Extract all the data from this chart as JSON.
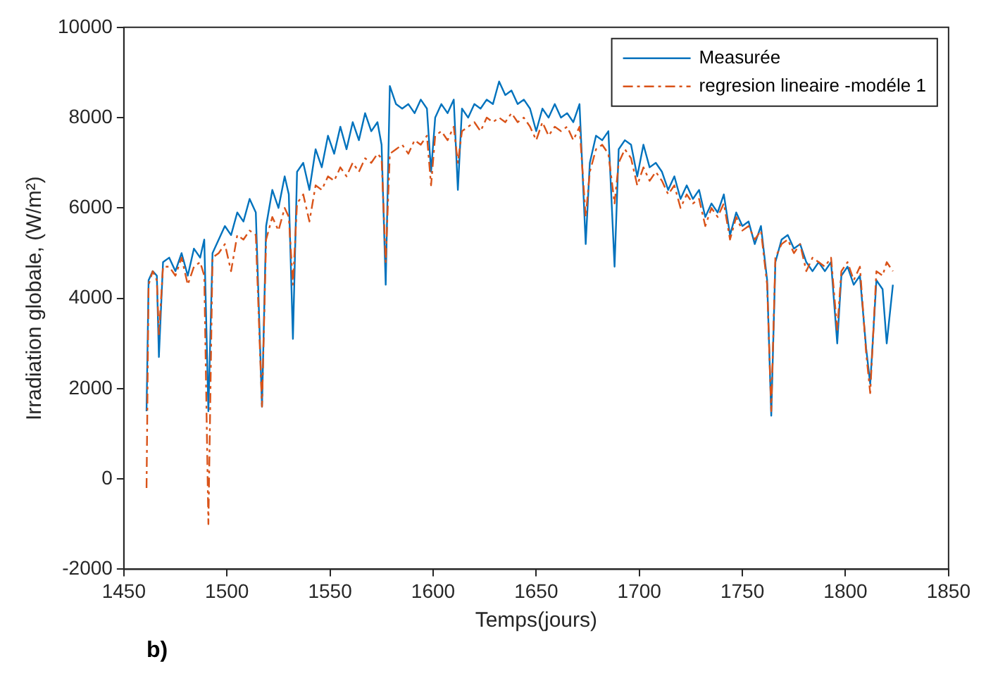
{
  "chart_data": {
    "type": "line",
    "xlabel": "Temps(jours)",
    "ylabel": "Irradiation globale, (W/m²)",
    "x": [
      1461,
      1462,
      1464,
      1466,
      1467,
      1469,
      1472,
      1475,
      1478,
      1481,
      1484,
      1487,
      1489,
      1491,
      1493,
      1496,
      1499,
      1502,
      1505,
      1508,
      1511,
      1514,
      1517,
      1519,
      1522,
      1525,
      1528,
      1530,
      1532,
      1534,
      1537,
      1540,
      1543,
      1546,
      1549,
      1552,
      1555,
      1558,
      1561,
      1564,
      1567,
      1570,
      1573,
      1575,
      1577,
      1579,
      1582,
      1585,
      1588,
      1591,
      1594,
      1597,
      1599,
      1601,
      1604,
      1607,
      1610,
      1612,
      1614,
      1617,
      1620,
      1623,
      1626,
      1629,
      1632,
      1635,
      1638,
      1641,
      1644,
      1647,
      1650,
      1653,
      1656,
      1659,
      1662,
      1665,
      1668,
      1671,
      1674,
      1676,
      1679,
      1682,
      1685,
      1688,
      1690,
      1693,
      1696,
      1699,
      1702,
      1705,
      1708,
      1711,
      1714,
      1717,
      1720,
      1723,
      1726,
      1729,
      1732,
      1735,
      1738,
      1741,
      1744,
      1747,
      1750,
      1753,
      1756,
      1759,
      1762,
      1764,
      1766,
      1769,
      1772,
      1775,
      1778,
      1781,
      1784,
      1787,
      1790,
      1793,
      1796,
      1798,
      1801,
      1804,
      1807,
      1810,
      1812,
      1815,
      1818,
      1820,
      1823
    ],
    "series": [
      {
        "name": "Measurée",
        "color": "#0072bd",
        "line_style": "solid",
        "values": [
          1500,
          4400,
          4600,
          4500,
          2700,
          4800,
          4900,
          4600,
          5000,
          4500,
          5100,
          4900,
          5300,
          1500,
          5000,
          5300,
          5600,
          5400,
          5900,
          5700,
          6200,
          5900,
          1600,
          5600,
          6400,
          6000,
          6700,
          6300,
          3100,
          6800,
          7000,
          6400,
          7300,
          6900,
          7600,
          7200,
          7800,
          7300,
          7900,
          7500,
          8100,
          7700,
          7900,
          7400,
          4300,
          8700,
          8300,
          8200,
          8300,
          8100,
          8400,
          8200,
          6800,
          8000,
          8300,
          8100,
          8400,
          6400,
          8200,
          8000,
          8300,
          8200,
          8400,
          8300,
          8800,
          8500,
          8600,
          8300,
          8400,
          8200,
          7700,
          8200,
          8000,
          8300,
          8000,
          8100,
          7900,
          8300,
          5200,
          7000,
          7600,
          7500,
          7700,
          4700,
          7300,
          7500,
          7400,
          6700,
          7400,
          6900,
          7000,
          6800,
          6400,
          6700,
          6200,
          6500,
          6200,
          6400,
          5800,
          6100,
          5900,
          6300,
          5400,
          5900,
          5600,
          5700,
          5200,
          5600,
          4400,
          1400,
          4800,
          5300,
          5400,
          5100,
          5200,
          4800,
          4600,
          4800,
          4600,
          4800,
          3000,
          4500,
          4700,
          4300,
          4500,
          2900,
          2100,
          4400,
          4200,
          3000,
          4300
        ]
      },
      {
        "name": "regresion lineaire -modéle 1",
        "color": "#d95319",
        "line_style": "dashed",
        "values": [
          -200,
          4300,
          4600,
          4400,
          3200,
          4700,
          4700,
          4500,
          4900,
          4300,
          4700,
          4800,
          4500,
          -1000,
          4900,
          5000,
          5200,
          4600,
          5400,
          5300,
          5500,
          5400,
          1600,
          5300,
          5800,
          5500,
          6000,
          5800,
          4300,
          6100,
          6300,
          5700,
          6500,
          6400,
          6700,
          6600,
          6900,
          6700,
          7000,
          6800,
          7100,
          7000,
          7200,
          7100,
          4800,
          7200,
          7300,
          7400,
          7200,
          7500,
          7400,
          7600,
          6500,
          7600,
          7700,
          7500,
          7800,
          7000,
          7700,
          7800,
          7900,
          7700,
          8000,
          7900,
          8000,
          7900,
          8100,
          7900,
          8000,
          7800,
          7500,
          7900,
          7600,
          7800,
          7700,
          7800,
          7500,
          7800,
          5800,
          6800,
          7300,
          7400,
          7200,
          6100,
          7000,
          7300,
          7100,
          6500,
          6900,
          6600,
          6800,
          6600,
          6300,
          6500,
          6000,
          6300,
          6100,
          6200,
          5600,
          6000,
          5800,
          6100,
          5300,
          5800,
          5500,
          5600,
          5300,
          5500,
          4300,
          1500,
          4900,
          5200,
          5300,
          5000,
          5200,
          4600,
          4900,
          4800,
          4700,
          4900,
          3300,
          4600,
          4800,
          4400,
          4700,
          2800,
          1900,
          4600,
          4500,
          4800,
          4600
        ]
      }
    ],
    "xlim": [
      1450,
      1850
    ],
    "xticks": [
      1450,
      1500,
      1550,
      1600,
      1650,
      1700,
      1750,
      1800,
      1850
    ],
    "ylim": [
      -2000,
      10000
    ],
    "yticks": [
      -2000,
      0,
      2000,
      4000,
      6000,
      8000,
      10000
    ],
    "grid": false,
    "legend": "top right",
    "marker": "none",
    "annotations": [
      "b)"
    ]
  }
}
